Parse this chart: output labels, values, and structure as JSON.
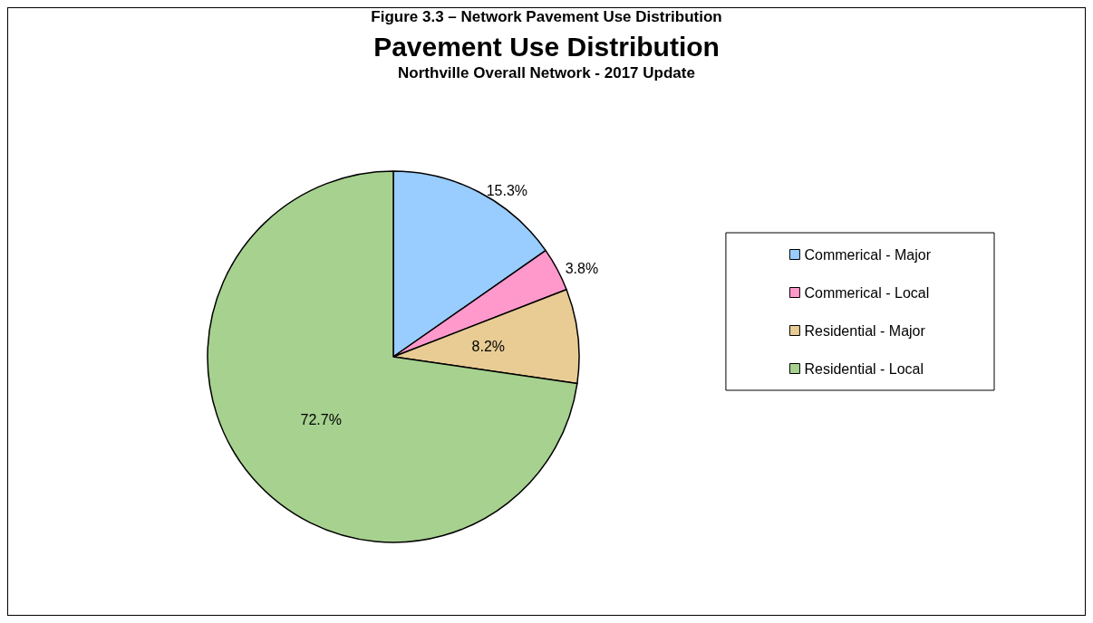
{
  "chart_data": {
    "type": "pie",
    "title": "Pavement Use Distribution",
    "subtitle": "Northville Overall Network - 2017 Update",
    "annotations": [
      "Figure 3.3 – Network Pavement Use Distribution"
    ],
    "categories": [
      "Commerical - Major",
      "Commerical - Local",
      "Residential - Major",
      "Residential - Local"
    ],
    "values": [
      15.3,
      3.8,
      8.2,
      72.7
    ],
    "colors": [
      "#99ccff",
      "#ff99cc",
      "#e8cc94",
      "#a6d18f"
    ],
    "value_labels": [
      "15.3%",
      "3.8%",
      "8.2%",
      "72.7%"
    ],
    "legend": "right"
  }
}
